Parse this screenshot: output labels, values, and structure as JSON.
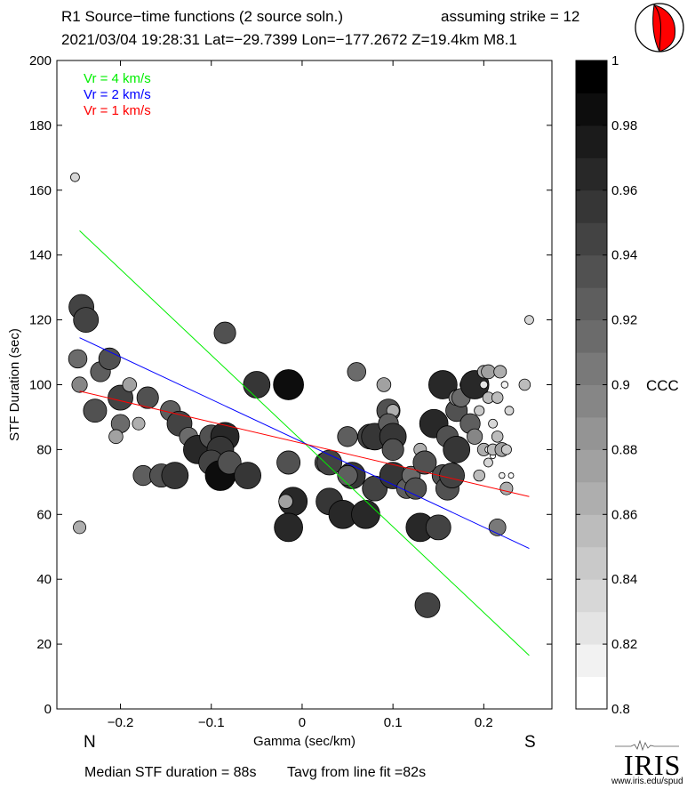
{
  "header": {
    "line1_left": "R1 Source−time functions (2 source soln.)",
    "line1_right": "assuming strike = 12",
    "line2": "2021/03/04 19:28:31  Lat=−29.7399 Lon=−177.2672  Z=19.4km  M8.1"
  },
  "footer": {
    "median": "Median STF duration = 88s",
    "tavg": "Tavg from line fit =82s"
  },
  "logo": {
    "text": "IRIS",
    "url": "www.iris.edu/spud"
  },
  "colors": {
    "vr4": "#00ee00",
    "vr2": "#0000ff",
    "vr1": "#ff0000",
    "beachball": "#ff0000"
  },
  "chart_data": {
    "type": "scatter",
    "xlabel": "Gamma (sec/km)",
    "ylabel": "STF Duration (sec)",
    "xlim": [
      -0.27,
      0.275
    ],
    "ylim": [
      0,
      200
    ],
    "xticks": [
      -0.2,
      -0.1,
      0,
      0.1,
      0.2
    ],
    "xtick_labels": [
      "−0.2",
      "−0.1",
      "0",
      "0.1",
      "0.2"
    ],
    "yticks": [
      0,
      20,
      40,
      60,
      80,
      100,
      120,
      140,
      160,
      180,
      200
    ],
    "ytick_labels": [
      "0",
      "20",
      "40",
      "60",
      "80",
      "100",
      "120",
      "140",
      "160",
      "180",
      "200"
    ],
    "direction_labels": {
      "left": "N",
      "right": "S"
    },
    "legend": [
      {
        "label": "Vr = 4 km/s",
        "color": "#00ee00"
      },
      {
        "label": "Vr = 2 km/s",
        "color": "#0000ff"
      },
      {
        "label": "Vr = 1 km/s",
        "color": "#ff0000"
      }
    ],
    "fit_lines": [
      {
        "name": "Vr = 4 km/s",
        "color": "#00ee00",
        "x": [
          -0.245,
          0.25
        ],
        "y": [
          147.5,
          16.5
        ]
      },
      {
        "name": "Vr = 2 km/s",
        "color": "#0000ff",
        "x": [
          -0.245,
          0.25
        ],
        "y": [
          114.5,
          49.5
        ]
      },
      {
        "name": "Vr = 1 km/s",
        "color": "#ff0000",
        "x": [
          -0.245,
          0.25
        ],
        "y": [
          98,
          65.5
        ]
      }
    ],
    "colorbar": {
      "label": "CCC",
      "min": 0.8,
      "max": 1.0,
      "ticks": [
        0.8,
        0.82,
        0.84,
        0.86,
        0.88,
        0.9,
        0.92,
        0.94,
        0.96,
        0.98,
        1
      ],
      "tick_labels": [
        "0.8",
        "0.82",
        "0.84",
        "0.86",
        "0.88",
        "0.9",
        "0.92",
        "0.94",
        "0.96",
        "0.98",
        "1"
      ],
      "steps": 20
    },
    "points": [
      {
        "x": -0.25,
        "y": 164,
        "ccc": 0.84
      },
      {
        "x": -0.243,
        "y": 124,
        "ccc": 0.95
      },
      {
        "x": -0.238,
        "y": 120,
        "ccc": 0.95
      },
      {
        "x": -0.247,
        "y": 108,
        "ccc": 0.91
      },
      {
        "x": -0.245,
        "y": 100,
        "ccc": 0.89
      },
      {
        "x": -0.222,
        "y": 104,
        "ccc": 0.92
      },
      {
        "x": -0.212,
        "y": 108,
        "ccc": 0.93
      },
      {
        "x": -0.2,
        "y": 96,
        "ccc": 0.95
      },
      {
        "x": -0.228,
        "y": 92,
        "ccc": 0.94
      },
      {
        "x": -0.2,
        "y": 88,
        "ccc": 0.91
      },
      {
        "x": -0.205,
        "y": 84,
        "ccc": 0.88
      },
      {
        "x": -0.19,
        "y": 100,
        "ccc": 0.88
      },
      {
        "x": -0.17,
        "y": 96,
        "ccc": 0.93
      },
      {
        "x": -0.18,
        "y": 88,
        "ccc": 0.87
      },
      {
        "x": -0.245,
        "y": 56,
        "ccc": 0.87
      },
      {
        "x": -0.145,
        "y": 92,
        "ccc": 0.92
      },
      {
        "x": -0.135,
        "y": 88,
        "ccc": 0.95
      },
      {
        "x": -0.125,
        "y": 84,
        "ccc": 0.91
      },
      {
        "x": -0.115,
        "y": 80,
        "ccc": 0.97
      },
      {
        "x": -0.1,
        "y": 84,
        "ccc": 0.94
      },
      {
        "x": -0.085,
        "y": 84,
        "ccc": 0.97
      },
      {
        "x": -0.09,
        "y": 80,
        "ccc": 0.96
      },
      {
        "x": -0.1,
        "y": 76,
        "ccc": 0.95
      },
      {
        "x": -0.175,
        "y": 72,
        "ccc": 0.92
      },
      {
        "x": -0.155,
        "y": 72,
        "ccc": 0.94
      },
      {
        "x": -0.14,
        "y": 72,
        "ccc": 0.96
      },
      {
        "x": -0.09,
        "y": 72,
        "ccc": 0.98
      },
      {
        "x": -0.08,
        "y": 76,
        "ccc": 0.94
      },
      {
        "x": -0.06,
        "y": 72,
        "ccc": 0.96
      },
      {
        "x": -0.085,
        "y": 116,
        "ccc": 0.93
      },
      {
        "x": -0.05,
        "y": 100,
        "ccc": 0.96
      },
      {
        "x": -0.015,
        "y": 100,
        "ccc": 0.98
      },
      {
        "x": -0.015,
        "y": 76,
        "ccc": 0.94
      },
      {
        "x": -0.01,
        "y": 64,
        "ccc": 0.97
      },
      {
        "x": -0.015,
        "y": 56,
        "ccc": 0.97
      },
      {
        "x": -0.018,
        "y": 64,
        "ccc": 0.88
      },
      {
        "x": 0.025,
        "y": 76,
        "ccc": 0.92
      },
      {
        "x": 0.03,
        "y": 76,
        "ccc": 0.95
      },
      {
        "x": 0.03,
        "y": 64,
        "ccc": 0.96
      },
      {
        "x": 0.045,
        "y": 60,
        "ccc": 0.97
      },
      {
        "x": 0.055,
        "y": 72,
        "ccc": 0.96
      },
      {
        "x": 0.05,
        "y": 84,
        "ccc": 0.92
      },
      {
        "x": 0.06,
        "y": 104,
        "ccc": 0.91
      },
      {
        "x": 0.07,
        "y": 60,
        "ccc": 0.97
      },
      {
        "x": 0.08,
        "y": 68,
        "ccc": 0.95
      },
      {
        "x": 0.05,
        "y": 72,
        "ccc": 0.92
      },
      {
        "x": 0.075,
        "y": 84,
        "ccc": 0.95
      },
      {
        "x": 0.08,
        "y": 84,
        "ccc": 0.96
      },
      {
        "x": 0.09,
        "y": 100,
        "ccc": 0.88
      },
      {
        "x": 0.095,
        "y": 92,
        "ccc": 0.94
      },
      {
        "x": 0.1,
        "y": 92,
        "ccc": 0.87
      },
      {
        "x": 0.095,
        "y": 88,
        "ccc": 0.92
      },
      {
        "x": 0.1,
        "y": 84,
        "ccc": 0.96
      },
      {
        "x": 0.1,
        "y": 80,
        "ccc": 0.93
      },
      {
        "x": 0.1,
        "y": 72,
        "ccc": 0.96
      },
      {
        "x": 0.115,
        "y": 68,
        "ccc": 0.92
      },
      {
        "x": 0.12,
        "y": 72,
        "ccc": 0.91
      },
      {
        "x": 0.125,
        "y": 68,
        "ccc": 0.93
      },
      {
        "x": 0.13,
        "y": 80,
        "ccc": 0.87
      },
      {
        "x": 0.135,
        "y": 76,
        "ccc": 0.94
      },
      {
        "x": 0.13,
        "y": 56,
        "ccc": 0.97
      },
      {
        "x": 0.15,
        "y": 56,
        "ccc": 0.95
      },
      {
        "x": 0.138,
        "y": 32,
        "ccc": 0.95
      },
      {
        "x": 0.145,
        "y": 88,
        "ccc": 0.97
      },
      {
        "x": 0.155,
        "y": 100,
        "ccc": 0.97
      },
      {
        "x": 0.155,
        "y": 72,
        "ccc": 0.93
      },
      {
        "x": 0.16,
        "y": 68,
        "ccc": 0.94
      },
      {
        "x": 0.165,
        "y": 72,
        "ccc": 0.95
      },
      {
        "x": 0.16,
        "y": 84,
        "ccc": 0.93
      },
      {
        "x": 0.17,
        "y": 80,
        "ccc": 0.96
      },
      {
        "x": 0.17,
        "y": 92,
        "ccc": 0.93
      },
      {
        "x": 0.17,
        "y": 96,
        "ccc": 0.89
      },
      {
        "x": 0.175,
        "y": 96,
        "ccc": 0.91
      },
      {
        "x": 0.18,
        "y": 100,
        "ccc": 0.86
      },
      {
        "x": 0.185,
        "y": 88,
        "ccc": 0.92
      },
      {
        "x": 0.19,
        "y": 100,
        "ccc": 0.97
      },
      {
        "x": 0.195,
        "y": 92,
        "ccc": 0.85
      },
      {
        "x": 0.19,
        "y": 84,
        "ccc": 0.89
      },
      {
        "x": 0.2,
        "y": 80,
        "ccc": 0.87
      },
      {
        "x": 0.2,
        "y": 104,
        "ccc": 0.87
      },
      {
        "x": 0.205,
        "y": 104,
        "ccc": 0.88
      },
      {
        "x": 0.2,
        "y": 100,
        "ccc": 0.83
      },
      {
        "x": 0.205,
        "y": 96,
        "ccc": 0.86
      },
      {
        "x": 0.21,
        "y": 88,
        "ccc": 0.84
      },
      {
        "x": 0.205,
        "y": 80,
        "ccc": 0.82
      },
      {
        "x": 0.21,
        "y": 78,
        "ccc": 0.8
      },
      {
        "x": 0.205,
        "y": 76,
        "ccc": 0.84
      },
      {
        "x": 0.21,
        "y": 80,
        "ccc": 0.86
      },
      {
        "x": 0.215,
        "y": 84,
        "ccc": 0.86
      },
      {
        "x": 0.22,
        "y": 80,
        "ccc": 0.88
      },
      {
        "x": 0.225,
        "y": 80,
        "ccc": 0.85
      },
      {
        "x": 0.215,
        "y": 96,
        "ccc": 0.86
      },
      {
        "x": 0.218,
        "y": 104,
        "ccc": 0.87
      },
      {
        "x": 0.223,
        "y": 100,
        "ccc": 0.82
      },
      {
        "x": 0.228,
        "y": 92,
        "ccc": 0.84
      },
      {
        "x": 0.22,
        "y": 72,
        "ccc": 0.81
      },
      {
        "x": 0.23,
        "y": 72,
        "ccc": 0.8
      },
      {
        "x": 0.195,
        "y": 72,
        "ccc": 0.86
      },
      {
        "x": 0.225,
        "y": 68,
        "ccc": 0.87
      },
      {
        "x": 0.215,
        "y": 56,
        "ccc": 0.9
      },
      {
        "x": 0.245,
        "y": 100,
        "ccc": 0.86
      },
      {
        "x": 0.25,
        "y": 120,
        "ccc": 0.84
      }
    ]
  }
}
